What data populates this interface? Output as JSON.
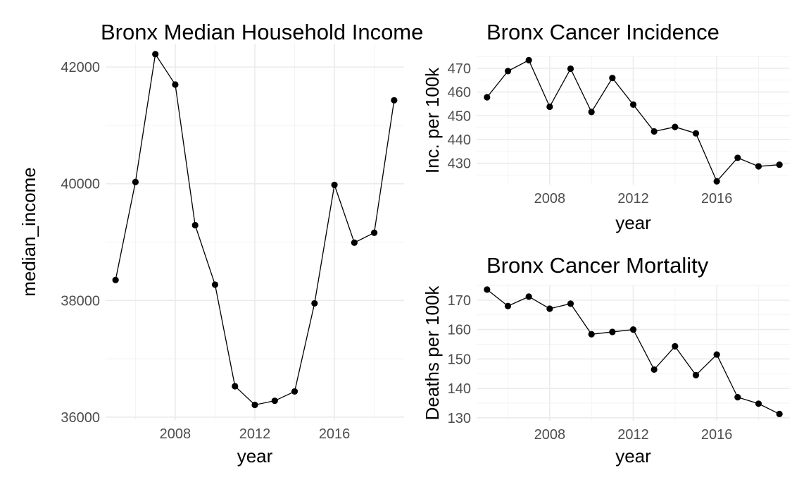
{
  "chart_data": [
    {
      "type": "line",
      "title": "Bronx Median Household Income",
      "xlabel": "year",
      "ylabel": "median_income",
      "x": [
        2005,
        2006,
        2007,
        2008,
        2009,
        2010,
        2011,
        2012,
        2013,
        2014,
        2015,
        2016,
        2017,
        2018,
        2019
      ],
      "series": [
        {
          "values": [
            38350,
            40030,
            42220,
            41700,
            39290,
            38270,
            36530,
            36210,
            36280,
            36440,
            37950,
            39980,
            38990,
            39160,
            41430
          ]
        }
      ],
      "xlim": [
        2004.5,
        2019.5
      ],
      "ylim": [
        35950,
        42400
      ],
      "xticks": [
        2008,
        2012,
        2016
      ],
      "yticks": [
        36000,
        38000,
        40000,
        42000
      ],
      "grid": true,
      "legend": "none"
    },
    {
      "type": "line",
      "title": "Bronx Cancer Incidence",
      "xlabel": "year",
      "ylabel": "Inc. per 100k",
      "x": [
        2005,
        2006,
        2007,
        2008,
        2009,
        2010,
        2011,
        2012,
        2013,
        2014,
        2015,
        2016,
        2017,
        2018,
        2019
      ],
      "series": [
        {
          "values": [
            457.8,
            468.8,
            473.4,
            453.8,
            469.8,
            451.6,
            465.9,
            454.7,
            443.4,
            445.3,
            442.6,
            422.4,
            432.3,
            428.7,
            429.4
          ]
        }
      ],
      "xlim": [
        2004.5,
        2019.5
      ],
      "ylim": [
        421,
        475
      ],
      "xticks": [
        2008,
        2012,
        2016
      ],
      "yticks": [
        430,
        440,
        450,
        460,
        470
      ],
      "grid": true,
      "legend": "none"
    },
    {
      "type": "line",
      "title": "Bronx Cancer Mortality",
      "xlabel": "year",
      "ylabel": "Deaths per 100k",
      "x": [
        2005,
        2006,
        2007,
        2008,
        2009,
        2010,
        2011,
        2012,
        2013,
        2014,
        2015,
        2016,
        2017,
        2018,
        2019
      ],
      "series": [
        {
          "values": [
            173.6,
            168.0,
            171.2,
            167.1,
            168.8,
            158.4,
            159.2,
            160.0,
            146.4,
            154.3,
            144.5,
            151.5,
            137.0,
            134.8,
            131.3
          ]
        }
      ],
      "xlim": [
        2004.5,
        2019.5
      ],
      "ylim": [
        129,
        175
      ],
      "xticks": [
        2008,
        2012,
        2016
      ],
      "yticks": [
        130,
        140,
        150,
        160,
        170
      ],
      "grid": true,
      "legend": "none"
    }
  ]
}
